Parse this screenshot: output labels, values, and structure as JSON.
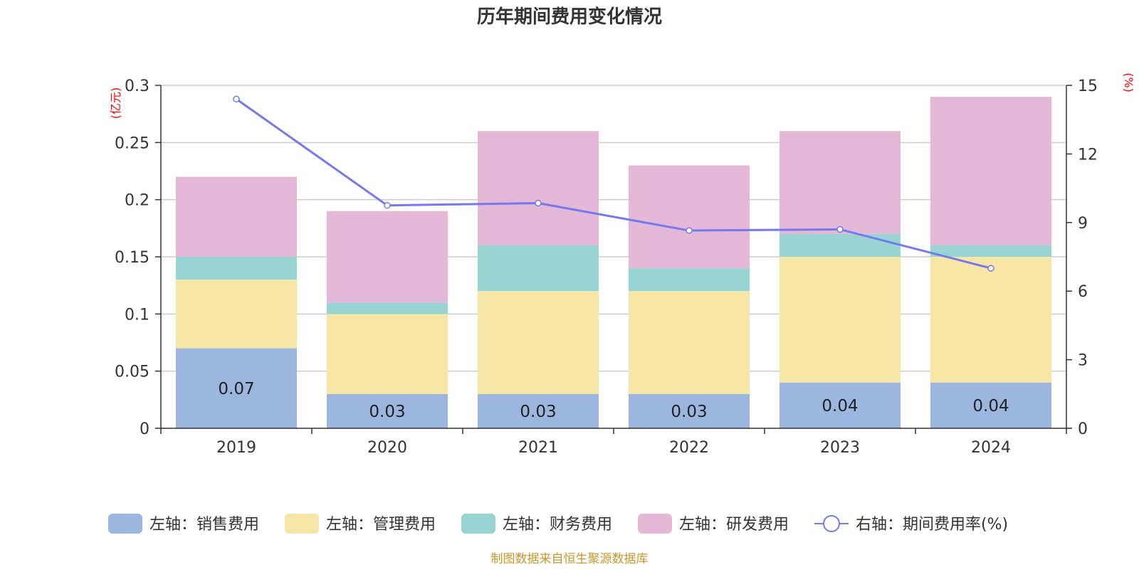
{
  "chart_data": {
    "type": "bar",
    "stacked": true,
    "title": "历年期间费用变化情况",
    "categories": [
      "2019",
      "2020",
      "2021",
      "2022",
      "2023",
      "2024"
    ],
    "y_left": {
      "unit": "(亿元)",
      "ylim": [
        0,
        0.3
      ],
      "ticks": [
        "0",
        "0.05",
        "0.1",
        "0.15",
        "0.2",
        "0.25",
        "0.3"
      ],
      "tick_values": [
        0,
        0.05,
        0.1,
        0.15,
        0.2,
        0.25,
        0.3
      ]
    },
    "y_right": {
      "unit": "(%)",
      "ylim": [
        0,
        15
      ],
      "ticks": [
        "0",
        "3",
        "6",
        "9",
        "12",
        "15"
      ],
      "tick_values": [
        0,
        3,
        6,
        9,
        12,
        15
      ]
    },
    "series": [
      {
        "name": "左轴：销售费用",
        "axis": "left",
        "kind": "bar",
        "color": "#9bb7e0",
        "values": [
          0.07,
          0.03,
          0.03,
          0.03,
          0.04,
          0.04
        ],
        "labels": [
          "0.07",
          "0.03",
          "0.03",
          "0.03",
          "0.04",
          "0.04"
        ]
      },
      {
        "name": "左轴：管理费用",
        "axis": "left",
        "kind": "bar",
        "color": "#f7e6a6",
        "values": [
          0.06,
          0.07,
          0.09,
          0.09,
          0.11,
          0.11
        ]
      },
      {
        "name": "左轴：财务费用",
        "axis": "left",
        "kind": "bar",
        "color": "#98d4d4",
        "values": [
          0.02,
          0.01,
          0.04,
          0.02,
          0.02,
          0.01
        ]
      },
      {
        "name": "左轴：研发费用",
        "axis": "left",
        "kind": "bar",
        "color": "#e6b8d8",
        "values": [
          0.07,
          0.08,
          0.1,
          0.09,
          0.09,
          0.13
        ]
      },
      {
        "name": "右轴：期间费用率(%)",
        "axis": "right",
        "kind": "line",
        "color": "#7479ee",
        "values": [
          14.4,
          9.75,
          9.85,
          8.65,
          8.7,
          7.0
        ]
      }
    ],
    "grid": true,
    "legend_position": "bottom"
  },
  "footer": {
    "source": "制图数据来自恒生聚源数据库"
  }
}
